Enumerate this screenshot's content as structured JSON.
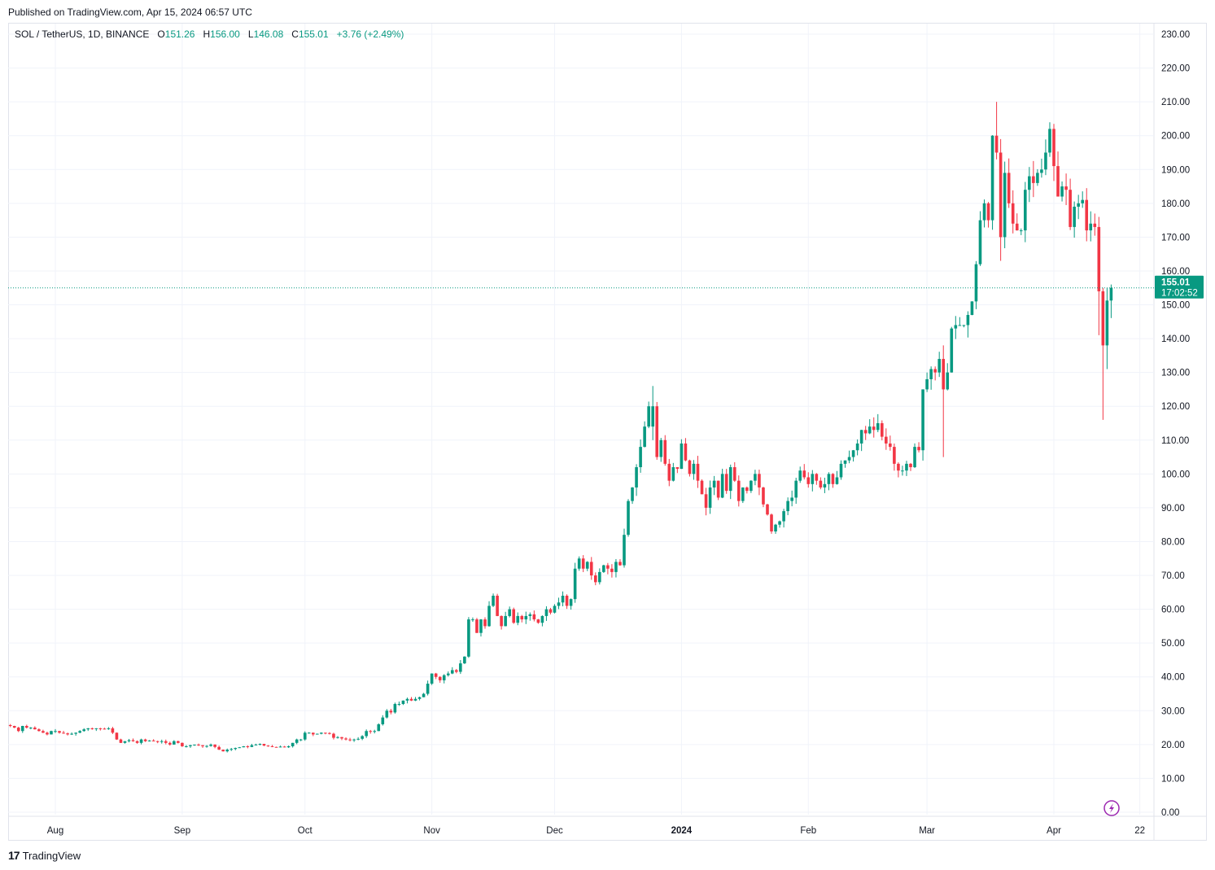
{
  "published": "Published on TradingView.com, Apr 15, 2024 06:57 UTC",
  "legend": {
    "symbol": "SOL / TetherUS, 1D, BINANCE",
    "o_label": "O",
    "o": "151.26",
    "h_label": "H",
    "h": "156.00",
    "l_label": "L",
    "l": "146.08",
    "c_label": "C",
    "c": "155.01",
    "change": "+3.76 (+2.49%)"
  },
  "price_tag": {
    "price": "155.01",
    "countdown": "17:02:52"
  },
  "footer": {
    "brand": "TradingView"
  },
  "colors": {
    "up": "#089981",
    "down": "#F23645",
    "grid": "#f0f3fa",
    "accent": "#9c27b0"
  },
  "chart_data": {
    "type": "candlestick",
    "title": "SOL / TetherUS, 1D, BINANCE",
    "start_date": "2023-07-21",
    "end_date": "2024-04-15",
    "ylim": [
      0,
      230
    ],
    "y_ticks": [
      "0.00",
      "10.00",
      "20.00",
      "30.00",
      "40.00",
      "50.00",
      "60.00",
      "70.00",
      "80.00",
      "90.00",
      "100.00",
      "110.00",
      "120.00",
      "130.00",
      "140.00",
      "150.00",
      "160.00",
      "170.00",
      "180.00",
      "190.00",
      "200.00",
      "210.00",
      "220.00",
      "230.00"
    ],
    "x_ticks": [
      {
        "label": "Aug",
        "date": "2023-08-01"
      },
      {
        "label": "Sep",
        "date": "2023-09-01"
      },
      {
        "label": "Oct",
        "date": "2023-10-01"
      },
      {
        "label": "Nov",
        "date": "2023-11-01"
      },
      {
        "label": "Dec",
        "date": "2023-12-01"
      },
      {
        "label": "2024",
        "date": "2024-01-01",
        "bold": true
      },
      {
        "label": "Feb",
        "date": "2024-02-01"
      },
      {
        "label": "Mar",
        "date": "2024-03-01"
      },
      {
        "label": "Apr",
        "date": "2024-04-01"
      },
      {
        "label": "22",
        "date": "2024-04-22"
      }
    ],
    "grid": true,
    "last_price": 155.01,
    "close": [
      25.5,
      25,
      24,
      25.5,
      25,
      25,
      24.5,
      24,
      23.5,
      23,
      24,
      24,
      23.5,
      23.3,
      23,
      23.2,
      23.5,
      24,
      24.5,
      24.8,
      24.6,
      24.8,
      24.7,
      24.6,
      24.8,
      23.5,
      21.5,
      20.5,
      21,
      21.3,
      21,
      20.5,
      21.5,
      21,
      21.2,
      21,
      20.8,
      21,
      20.5,
      20,
      21,
      20.5,
      19.5,
      19.5,
      19.8,
      20,
      19.8,
      19.5,
      19.6,
      20,
      19.3,
      18.5,
      18,
      18.5,
      18.7,
      19,
      19.2,
      19.5,
      19.3,
      19.8,
      20,
      20.2,
      19.7,
      19.5,
      19.3,
      19.2,
      19.4,
      19.2,
      19.5,
      20.5,
      21.5,
      21.5,
      23.5,
      23.5,
      23,
      23.2,
      23.5,
      23.4,
      23.2,
      22,
      22.2,
      21.8,
      21.5,
      21.3,
      21.5,
      21.7,
      22.5,
      24,
      23.8,
      24,
      26,
      28,
      30,
      29.5,
      32,
      32,
      33,
      33.5,
      33,
      33.5,
      34,
      35,
      38,
      41,
      40,
      39,
      40.5,
      41,
      42,
      41.5,
      44,
      46,
      57,
      57,
      53,
      57,
      55,
      61,
      64,
      58,
      55,
      58,
      60,
      56,
      58,
      57,
      58,
      58.5,
      57,
      56,
      58,
      60,
      59,
      61,
      62,
      64,
      61,
      63,
      72,
      75,
      72,
      74,
      70,
      68,
      71,
      73,
      72,
      71,
      74,
      73,
      82,
      92,
      96,
      102,
      108,
      114,
      120,
      112,
      105,
      110,
      103,
      98,
      102,
      101.5,
      109,
      104,
      100,
      103,
      98,
      94,
      90,
      96,
      98,
      93,
      100,
      95,
      102,
      98,
      92,
      96,
      95,
      98,
      100,
      96,
      91,
      88,
      83,
      85,
      86,
      89,
      92,
      93,
      98,
      101,
      99,
      97,
      100,
      98,
      96,
      97,
      100,
      97,
      99,
      103,
      104,
      105,
      107,
      109,
      113,
      112,
      114,
      113,
      115,
      111,
      109,
      108,
      103,
      101,
      101,
      103,
      102,
      108,
      107,
      125,
      128,
      131,
      130,
      134,
      125,
      130,
      143,
      144,
      144,
      144,
      147,
      151,
      162,
      175,
      180,
      175,
      200,
      195,
      170,
      189,
      180,
      174,
      172,
      172,
      184,
      188,
      186,
      189,
      190,
      195,
      202,
      191,
      182,
      185,
      184,
      173,
      179,
      180,
      181,
      172,
      174,
      173,
      154,
      138,
      151.26,
      155.01
    ],
    "overrides": {
      "2024-03-05": [
        134,
        138,
        105,
        125
      ],
      "2024-03-18": [
        200,
        210,
        193,
        195
      ],
      "2024-03-19": [
        195,
        199,
        163,
        170
      ],
      "2024-04-12": [
        173,
        176,
        141,
        154
      ],
      "2024-04-13": [
        154,
        155,
        116,
        138
      ],
      "2024-04-14": [
        138,
        155,
        131,
        151.26
      ],
      "2024-04-15": [
        151.26,
        156.0,
        146.08,
        155.01
      ],
      "2023-12-25": [
        114,
        126,
        110,
        120
      ]
    }
  }
}
